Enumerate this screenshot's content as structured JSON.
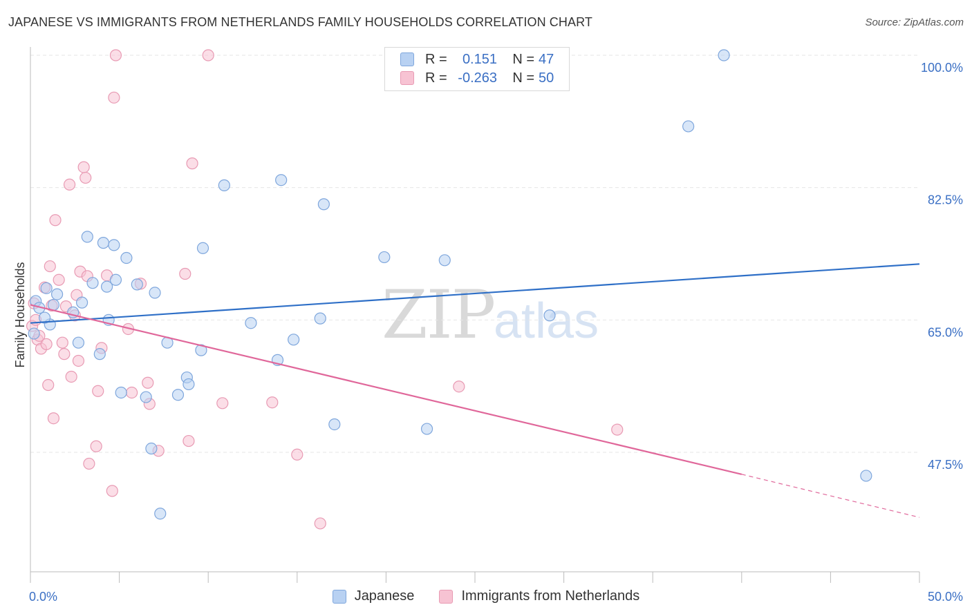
{
  "title": "JAPANESE VS IMMIGRANTS FROM NETHERLANDS FAMILY HOUSEHOLDS CORRELATION CHART",
  "source": "Source: ZipAtlas.com",
  "watermark": {
    "zip": "ZIP",
    "atlas": "atlas"
  },
  "legend_top": {
    "rows": [
      {
        "r_label": "R =",
        "r_value": "0.151",
        "n_label": "N =",
        "n_value": "47"
      },
      {
        "r_label": "R =",
        "r_value": "-0.263",
        "n_label": "N =",
        "n_value": "50"
      }
    ]
  },
  "legend_bottom": [
    "Japanese",
    "Immigrants from Netherlands"
  ],
  "colors": {
    "japanese_fill": "#b8d1f2",
    "japanese_stroke": "#7ea6dc",
    "japanese_line": "#2e6fc7",
    "netherlands_fill": "#f7c3d3",
    "netherlands_stroke": "#e89ab3",
    "netherlands_line": "#e0679a",
    "axis_label": "#3a6fc4",
    "grid": "#e6e6e6"
  },
  "chart_data": {
    "type": "scatter",
    "title": "JAPANESE VS IMMIGRANTS FROM NETHERLANDS FAMILY HOUSEHOLDS CORRELATION CHART",
    "xlabel": "",
    "ylabel": "Family Households",
    "xlim": [
      0,
      50
    ],
    "ylim": [
      34.5,
      102
    ],
    "x_tick_labels": [
      "0.0%",
      "50.0%"
    ],
    "y_ticks": [
      47.5,
      65.0,
      82.5,
      100.0
    ],
    "y_tick_labels": [
      "47.5%",
      "65.0%",
      "82.5%",
      "100.0%"
    ],
    "grid": "horizontal dashed",
    "legend": "top-center",
    "series": [
      {
        "name": "Japanese",
        "r": 0.151,
        "n": 47,
        "trend": {
          "x": [
            0,
            50
          ],
          "y": [
            64.6,
            72.4
          ]
        },
        "points": [
          [
            0.3,
            67.5
          ],
          [
            0.5,
            66.6
          ],
          [
            0.9,
            69.2
          ],
          [
            1.1,
            64.4
          ],
          [
            1.5,
            68.4
          ],
          [
            0.8,
            65.3
          ],
          [
            1.3,
            67.0
          ],
          [
            2.7,
            62.0
          ],
          [
            2.9,
            67.3
          ],
          [
            3.2,
            76.0
          ],
          [
            3.5,
            69.9
          ],
          [
            3.9,
            60.5
          ],
          [
            4.1,
            75.2
          ],
          [
            4.3,
            69.4
          ],
          [
            4.4,
            65.0
          ],
          [
            4.7,
            74.9
          ],
          [
            4.8,
            70.3
          ],
          [
            5.4,
            73.2
          ],
          [
            5.1,
            55.4
          ],
          [
            6.0,
            69.7
          ],
          [
            6.5,
            54.8
          ],
          [
            7.0,
            68.6
          ],
          [
            6.8,
            48.0
          ],
          [
            7.3,
            39.4
          ],
          [
            7.7,
            62.0
          ],
          [
            8.3,
            55.1
          ],
          [
            8.8,
            57.4
          ],
          [
            8.9,
            56.5
          ],
          [
            9.6,
            61.0
          ],
          [
            9.7,
            74.5
          ],
          [
            10.9,
            82.8
          ],
          [
            12.4,
            64.6
          ],
          [
            13.9,
            59.7
          ],
          [
            14.1,
            83.5
          ],
          [
            14.8,
            62.4
          ],
          [
            16.3,
            65.2
          ],
          [
            16.5,
            80.3
          ],
          [
            17.1,
            51.2
          ],
          [
            19.9,
            73.3
          ],
          [
            22.3,
            50.6
          ],
          [
            23.3,
            72.9
          ],
          [
            29.2,
            65.6
          ],
          [
            37.0,
            90.6
          ],
          [
            39.0,
            100.0
          ],
          [
            47.0,
            44.4
          ],
          [
            0.2,
            63.2
          ],
          [
            2.4,
            66.0
          ]
        ]
      },
      {
        "name": "Immigrants from Netherlands",
        "r": -0.263,
        "n": 50,
        "trend": {
          "x": [
            0,
            40
          ],
          "y": [
            67.0,
            44.6
          ]
        },
        "trend_dashed": {
          "x": [
            40,
            50
          ],
          "y": [
            44.6,
            38.9
          ]
        },
        "points": [
          [
            0.1,
            64.2
          ],
          [
            0.3,
            65.0
          ],
          [
            0.4,
            62.4
          ],
          [
            0.6,
            61.2
          ],
          [
            0.8,
            69.3
          ],
          [
            0.9,
            61.8
          ],
          [
            1.0,
            56.4
          ],
          [
            1.1,
            72.1
          ],
          [
            1.2,
            66.9
          ],
          [
            1.3,
            52.0
          ],
          [
            1.4,
            78.2
          ],
          [
            1.6,
            70.3
          ],
          [
            1.8,
            62.0
          ],
          [
            1.9,
            60.5
          ],
          [
            2.0,
            66.8
          ],
          [
            2.2,
            82.9
          ],
          [
            2.3,
            57.5
          ],
          [
            2.5,
            65.6
          ],
          [
            2.6,
            68.3
          ],
          [
            2.7,
            59.6
          ],
          [
            2.8,
            71.4
          ],
          [
            3.0,
            85.2
          ],
          [
            3.1,
            83.8
          ],
          [
            3.2,
            70.8
          ],
          [
            3.3,
            46.0
          ],
          [
            3.7,
            48.3
          ],
          [
            3.8,
            55.6
          ],
          [
            4.0,
            61.3
          ],
          [
            4.3,
            70.9
          ],
          [
            4.6,
            42.4
          ],
          [
            4.8,
            100.0
          ],
          [
            4.7,
            94.4
          ],
          [
            5.5,
            63.8
          ],
          [
            5.7,
            55.4
          ],
          [
            6.2,
            69.8
          ],
          [
            6.6,
            56.7
          ],
          [
            6.7,
            53.9
          ],
          [
            7.2,
            47.7
          ],
          [
            8.7,
            71.1
          ],
          [
            8.9,
            49.0
          ],
          [
            9.1,
            85.7
          ],
          [
            10.0,
            100.0
          ],
          [
            10.8,
            54.0
          ],
          [
            13.6,
            54.1
          ],
          [
            15.0,
            47.2
          ],
          [
            16.3,
            38.1
          ],
          [
            24.1,
            56.2
          ],
          [
            33.0,
            50.5
          ],
          [
            0.2,
            67.2
          ],
          [
            0.5,
            62.9
          ]
        ]
      }
    ]
  }
}
